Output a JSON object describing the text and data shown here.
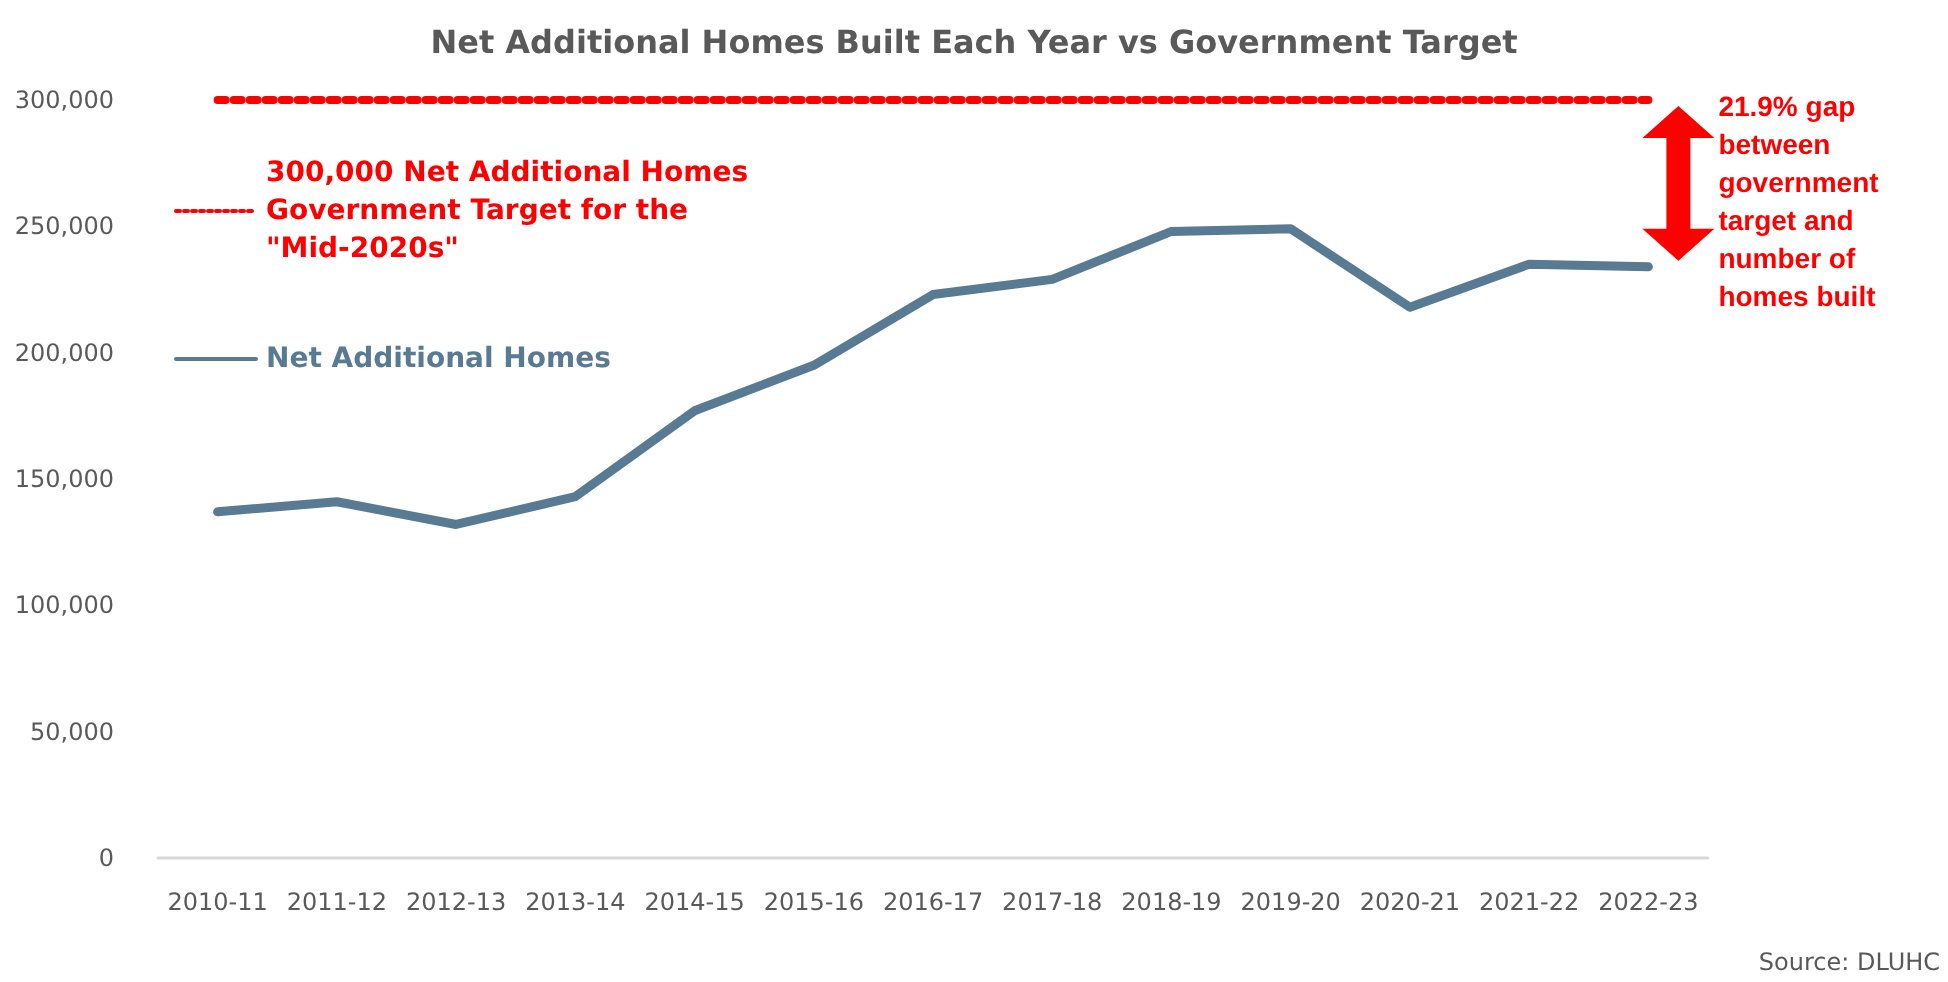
{
  "chart_data": {
    "type": "line",
    "title": "Net Additional Homes Built Each Year vs Government Target",
    "categories": [
      "2010-11",
      "2011-12",
      "2012-13",
      "2013-14",
      "2014-15",
      "2015-16",
      "2016-17",
      "2017-18",
      "2018-19",
      "2019-20",
      "2020-21",
      "2021-22",
      "2022-23"
    ],
    "series": [
      {
        "name": "Net Additional Homes",
        "color": "#587a93",
        "line_style": "solid",
        "values": [
          137000,
          141000,
          132000,
          143000,
          177000,
          195000,
          223000,
          229000,
          248000,
          249000,
          218000,
          235000,
          234000
        ]
      },
      {
        "name": "300,000 Net Additional Homes Government Target for the \"Mid-2020s\"",
        "color": "#ff0000",
        "line_style": "dotted",
        "values": [
          300000,
          300000,
          300000,
          300000,
          300000,
          300000,
          300000,
          300000,
          300000,
          300000,
          300000,
          300000,
          300000
        ]
      }
    ],
    "ylim": [
      0,
      300000
    ],
    "yticks": [
      0,
      {
        "value": 50000,
        "label": "50,000"
      },
      {
        "value": 100000,
        "label": "100,000"
      },
      {
        "value": 150000,
        "label": "150,000"
      },
      {
        "value": 200000,
        "label": "200,000"
      },
      {
        "value": 250000,
        "label": "250,000"
      },
      {
        "value": 300000,
        "label": "300,000"
      }
    ],
    "grid": false,
    "legend": "top left",
    "marker": "none",
    "annotations": [
      "21.9% gap between government target and number of homes built",
      "Source: DLUHC"
    ]
  }
}
